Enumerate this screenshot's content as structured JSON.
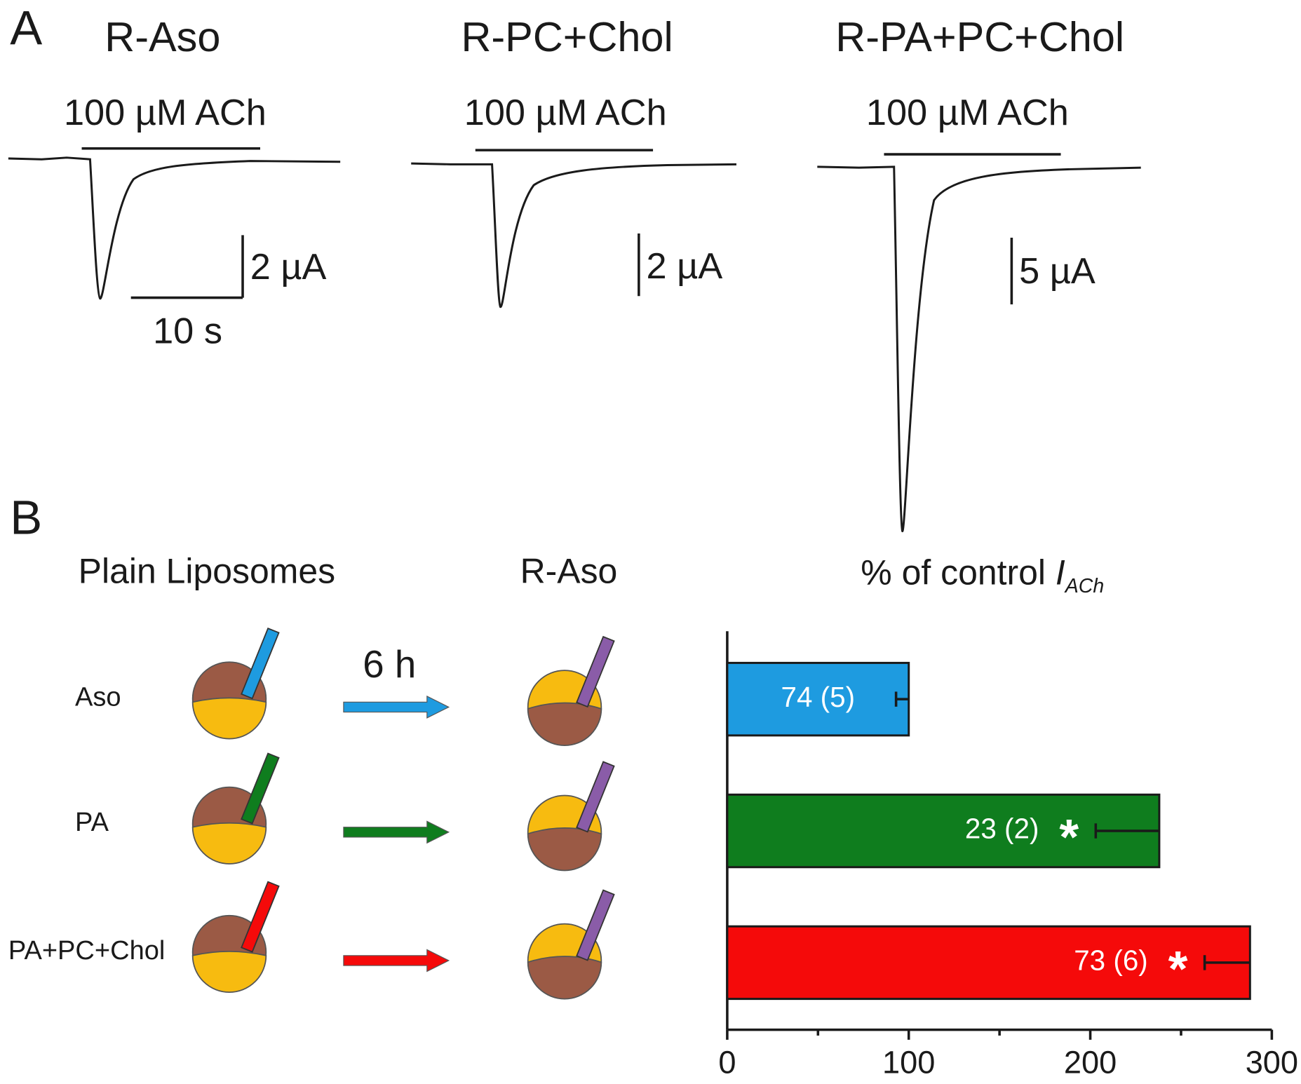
{
  "panel_a": {
    "label": "A",
    "recordings": [
      {
        "title": "R-Aso",
        "stimulus": "100 µM ACh",
        "current_scale": "2 µA",
        "time_scale": "10 s"
      },
      {
        "title": "R-PC+Chol",
        "stimulus": "100 µM ACh",
        "current_scale": "2 µA"
      },
      {
        "title": "R-PA+PC+Chol",
        "stimulus": "100 µM ACh",
        "current_scale": "5 µA"
      }
    ]
  },
  "panel_b": {
    "label": "B",
    "left_heading": "Plain Liposomes",
    "middle_heading": "R-Aso",
    "incubation": "6 h"
  },
  "chart_data": {
    "type": "bar",
    "orientation": "horizontal",
    "title_parts": [
      "% of control ",
      "I",
      "ACh"
    ],
    "categories": [
      "Aso",
      "PA",
      "PA+PC+Chol"
    ],
    "values": [
      100,
      238,
      288
    ],
    "errors": [
      7,
      35,
      25
    ],
    "bar_labels": [
      "74 (5)",
      "23 (2)",
      "73 (6)"
    ],
    "significance": [
      null,
      "*",
      "*"
    ],
    "colors": [
      "#1e9be0",
      "#0f7d1e",
      "#f50a0a"
    ],
    "xlim": [
      0,
      300
    ],
    "xticks": [
      0,
      100,
      200,
      300
    ],
    "minor_xticks": [
      50,
      150,
      250
    ]
  }
}
